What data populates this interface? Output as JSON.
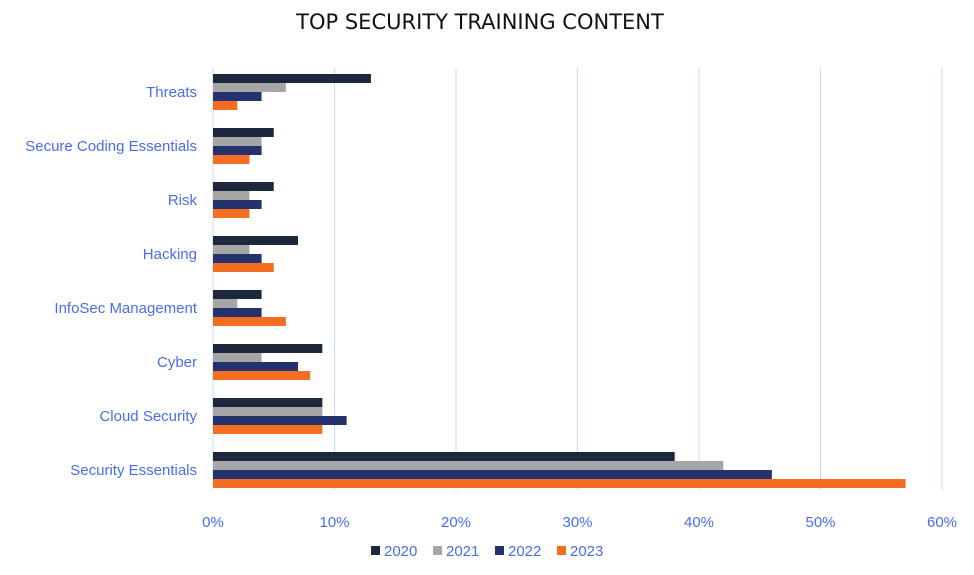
{
  "chart_data": {
    "type": "bar",
    "orientation": "horizontal",
    "title": "TOP SECURITY TRAINING CONTENT",
    "categories": [
      "Threats",
      "Secure Coding Essentials",
      "Risk",
      "Hacking",
      "InfoSec Management",
      "Cyber",
      "Cloud Security",
      "Security Essentials"
    ],
    "series": [
      {
        "name": "2020",
        "color": "#1e283c",
        "values": [
          13,
          5,
          5,
          7,
          4,
          9,
          9,
          38
        ]
      },
      {
        "name": "2021",
        "color": "#a6a6a6",
        "values": [
          6,
          4,
          3,
          3,
          2,
          4,
          9,
          42
        ]
      },
      {
        "name": "2022",
        "color": "#24336e",
        "values": [
          4,
          4,
          4,
          4,
          4,
          7,
          11,
          46
        ]
      },
      {
        "name": "2023",
        "color": "#f46e22",
        "values": [
          2,
          3,
          3,
          5,
          6,
          8,
          9,
          57
        ]
      }
    ],
    "xlim": [
      0,
      60
    ],
    "xticks": [
      "0%",
      "10%",
      "20%",
      "30%",
      "40%",
      "50%",
      "60%"
    ],
    "unit": "%",
    "grid": "vertical",
    "legend": "bottom",
    "label_color": "#4a6cf0"
  }
}
